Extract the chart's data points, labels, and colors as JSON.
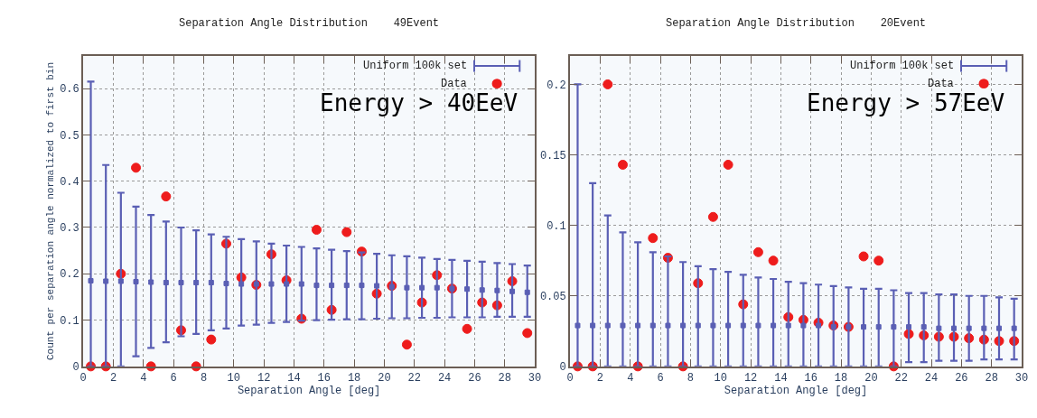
{
  "chart_data": [
    {
      "type": "scatter",
      "title": "Separation Angle Distribution    49Event",
      "xlabel": "Separation Angle [deg]",
      "ylabel": "Count per separation angle normalized to first bin",
      "x": [
        0.5,
        1.5,
        2.5,
        3.5,
        4.5,
        5.5,
        6.5,
        7.5,
        8.5,
        9.5,
        10.5,
        11.5,
        12.5,
        13.5,
        14.5,
        15.5,
        16.5,
        17.5,
        18.5,
        19.5,
        20.5,
        21.5,
        22.5,
        23.5,
        24.5,
        25.5,
        26.5,
        27.5,
        28.5,
        29.5
      ],
      "series": [
        {
          "name": "Uniform 100k set",
          "color": "#5a5fb4",
          "marker": "square",
          "values": [
            0.185,
            0.184,
            0.184,
            0.183,
            0.182,
            0.181,
            0.181,
            0.181,
            0.181,
            0.179,
            0.178,
            0.178,
            0.178,
            0.178,
            0.178,
            0.175,
            0.175,
            0.175,
            0.175,
            0.174,
            0.172,
            0.17,
            0.17,
            0.17,
            0.168,
            0.167,
            0.165,
            0.164,
            0.162,
            0.16
          ],
          "errors": [
            [
              0,
              0.615
            ],
            [
              0,
              0.435
            ],
            [
              0,
              0.375
            ],
            [
              0.022,
              0.345
            ],
            [
              0.04,
              0.327
            ],
            [
              0.052,
              0.313
            ],
            [
              0.065,
              0.3
            ],
            [
              0.07,
              0.294
            ],
            [
              0.078,
              0.285
            ],
            [
              0.082,
              0.28
            ],
            [
              0.088,
              0.275
            ],
            [
              0.09,
              0.27
            ],
            [
              0.094,
              0.265
            ],
            [
              0.096,
              0.261
            ],
            [
              0.099,
              0.258
            ],
            [
              0.1,
              0.255
            ],
            [
              0.101,
              0.252
            ],
            [
              0.102,
              0.249
            ],
            [
              0.102,
              0.246
            ],
            [
              0.103,
              0.243
            ],
            [
              0.104,
              0.24
            ],
            [
              0.104,
              0.238
            ],
            [
              0.105,
              0.235
            ],
            [
              0.105,
              0.232
            ],
            [
              0.106,
              0.23
            ],
            [
              0.106,
              0.228
            ],
            [
              0.106,
              0.226
            ],
            [
              0.107,
              0.223
            ],
            [
              0.107,
              0.221
            ],
            [
              0.107,
              0.218
            ]
          ]
        },
        {
          "name": "Data",
          "color": "#ee1c1c",
          "marker": "circle",
          "values": [
            0,
            0,
            0.2,
            0.429,
            0,
            0.367,
            0.078,
            0,
            0.058,
            0.265,
            0.192,
            0.176,
            0.242,
            0.186,
            0.103,
            0.295,
            0.122,
            0.29,
            0.248,
            0.157,
            0.174,
            0.047,
            0.138,
            0.197,
            0.168,
            0.081,
            0.138,
            0.132,
            0.184,
            0.072
          ]
        }
      ],
      "annotations": [
        "Energy > 40EeV"
      ],
      "xlim": [
        0,
        30
      ],
      "xticks": [
        0,
        2,
        4,
        6,
        8,
        10,
        12,
        14,
        16,
        18,
        20,
        22,
        24,
        26,
        28,
        30
      ],
      "ylim": [
        0,
        0.67
      ],
      "yticks": [
        0,
        0.1,
        0.2,
        0.3,
        0.4,
        0.5,
        0.6
      ],
      "grid": true,
      "legend": "top right"
    },
    {
      "type": "scatter",
      "title": "Separation Angle Distribution    20Event",
      "xlabel": "Separation Angle [deg]",
      "x": [
        0.5,
        1.5,
        2.5,
        3.5,
        4.5,
        5.5,
        6.5,
        7.5,
        8.5,
        9.5,
        10.5,
        11.5,
        12.5,
        13.5,
        14.5,
        15.5,
        16.5,
        17.5,
        18.5,
        19.5,
        20.5,
        21.5,
        22.5,
        23.5,
        24.5,
        25.5,
        26.5,
        27.5,
        28.5,
        29.5
      ],
      "series": [
        {
          "name": "Uniform 100k set",
          "color": "#5a5fb4",
          "marker": "square",
          "values": [
            0.029,
            0.029,
            0.029,
            0.029,
            0.029,
            0.029,
            0.029,
            0.029,
            0.029,
            0.029,
            0.029,
            0.029,
            0.029,
            0.029,
            0.029,
            0.029,
            0.029,
            0.028,
            0.028,
            0.028,
            0.028,
            0.028,
            0.028,
            0.028,
            0.027,
            0.027,
            0.027,
            0.027,
            0.027,
            0.027
          ],
          "errors": [
            [
              0,
              0.2
            ],
            [
              0,
              0.13
            ],
            [
              0,
              0.107
            ],
            [
              0,
              0.095
            ],
            [
              0,
              0.088
            ],
            [
              0,
              0.081
            ],
            [
              0,
              0.078
            ],
            [
              0,
              0.074
            ],
            [
              0,
              0.071
            ],
            [
              0,
              0.069
            ],
            [
              0,
              0.067
            ],
            [
              0,
              0.065
            ],
            [
              0,
              0.063
            ],
            [
              0,
              0.062
            ],
            [
              0,
              0.06
            ],
            [
              0,
              0.059
            ],
            [
              0,
              0.058
            ],
            [
              0,
              0.057
            ],
            [
              0,
              0.056
            ],
            [
              0,
              0.055
            ],
            [
              0,
              0.055
            ],
            [
              0,
              0.054
            ],
            [
              0.003,
              0.052
            ],
            [
              0.003,
              0.052
            ],
            [
              0.004,
              0.051
            ],
            [
              0.004,
              0.051
            ],
            [
              0.004,
              0.05
            ],
            [
              0.005,
              0.05
            ],
            [
              0.005,
              0.049
            ],
            [
              0.005,
              0.048
            ]
          ]
        },
        {
          "name": "Data",
          "color": "#ee1c1c",
          "marker": "circle",
          "values": [
            0,
            0,
            0.2,
            0.143,
            0,
            0.091,
            0.077,
            0,
            0.059,
            0.106,
            0.143,
            0.044,
            0.081,
            0.075,
            0.035,
            0.033,
            0.031,
            0.029,
            0.028,
            0.078,
            0.075,
            0,
            0.023,
            0.022,
            0.021,
            0.021,
            0.02,
            0.019,
            0.018,
            0.018
          ]
        }
      ],
      "annotations": [
        "Energy > 57EeV"
      ],
      "xlim": [
        0,
        30
      ],
      "xticks": [
        0,
        2,
        4,
        6,
        8,
        10,
        12,
        14,
        16,
        18,
        20,
        22,
        24,
        26,
        28,
        30
      ],
      "ylim": [
        0,
        0.22
      ],
      "yticks": [
        0,
        0.05,
        0.1,
        0.15,
        0.2
      ],
      "grid": true,
      "legend": "top right"
    }
  ]
}
